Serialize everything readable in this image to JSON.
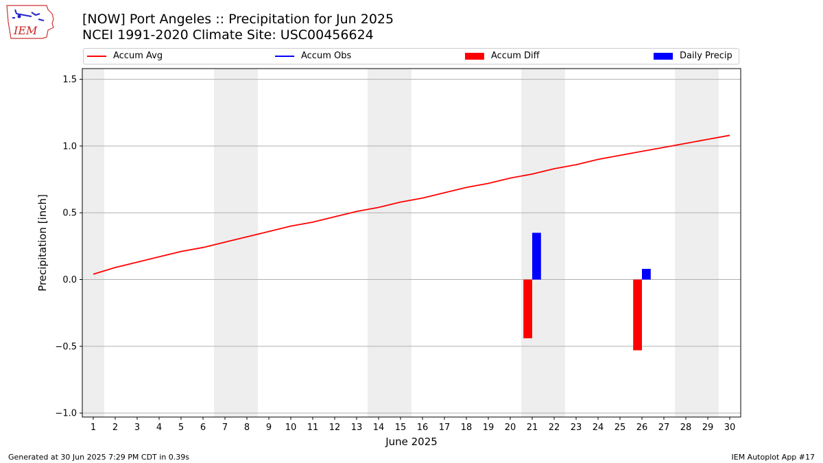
{
  "header": {
    "title_line1": "[NOW] Port Angeles :: Precipitation for Jun 2025",
    "title_line2": "NCEI 1991-2020 Climate Site: USC00456624"
  },
  "logo": {
    "text": "IEM",
    "icon": "iem-iowa-logo-icon"
  },
  "footer": {
    "left": "Generated at 30 Jun 2025 7:29 PM CDT in 0.39s",
    "right": "IEM Autoplot App #17"
  },
  "colors": {
    "accum_avg": "#ff0000",
    "accum_obs": "#0000ff",
    "accum_diff": "#ff0000",
    "daily_precip": "#0000ff",
    "weekend_shade": "#eeeeee",
    "grid": "#b0b0b0"
  },
  "chart_data": {
    "type": "bar",
    "xlabel": "June 2025",
    "ylabel": "Precipitation [inch]",
    "ylim": [
      -1.03,
      1.58
    ],
    "yticks": [
      -1.0,
      -0.5,
      0.0,
      0.5,
      1.0,
      1.5
    ],
    "ytick_labels": [
      "−1.0",
      "−0.5",
      "0.0",
      "0.5",
      "1.0",
      "1.5"
    ],
    "xlim": [
      0.5,
      30.5
    ],
    "days": [
      1,
      2,
      3,
      4,
      5,
      6,
      7,
      8,
      9,
      10,
      11,
      12,
      13,
      14,
      15,
      16,
      17,
      18,
      19,
      20,
      21,
      22,
      23,
      24,
      25,
      26,
      27,
      28,
      29,
      30
    ],
    "grid": "horizontal",
    "legend_position": "top",
    "weekends": [
      [
        1,
        1
      ],
      [
        7,
        8
      ],
      [
        14,
        15
      ],
      [
        21,
        22
      ],
      [
        28,
        29
      ]
    ],
    "series": [
      {
        "name": "Accum Avg",
        "kind": "line",
        "values": [
          0.04,
          0.09,
          0.13,
          0.17,
          0.21,
          0.24,
          0.28,
          0.32,
          0.36,
          0.4,
          0.43,
          0.47,
          0.51,
          0.54,
          0.58,
          0.61,
          0.65,
          0.69,
          0.72,
          0.76,
          0.79,
          0.83,
          0.86,
          0.9,
          0.93,
          0.96,
          0.99,
          1.02,
          1.05,
          1.08
        ]
      },
      {
        "name": "Accum Obs",
        "kind": "line",
        "values": []
      },
      {
        "name": "Accum Diff",
        "kind": "bar",
        "values": [
          0,
          0,
          0,
          0,
          0,
          0,
          0,
          0,
          0,
          0,
          0,
          0,
          0,
          0,
          0,
          0,
          0,
          0,
          0,
          0,
          -0.44,
          0,
          0,
          0,
          0,
          -0.53,
          0,
          0,
          0,
          0
        ]
      },
      {
        "name": "Daily Precip",
        "kind": "bar",
        "values": [
          0,
          0,
          0,
          0,
          0,
          0,
          0,
          0,
          0,
          0,
          0,
          0,
          0,
          0,
          0,
          0,
          0,
          0,
          0,
          0,
          0.35,
          0,
          0,
          0,
          0,
          0.08,
          0,
          0,
          0,
          0
        ]
      }
    ]
  }
}
